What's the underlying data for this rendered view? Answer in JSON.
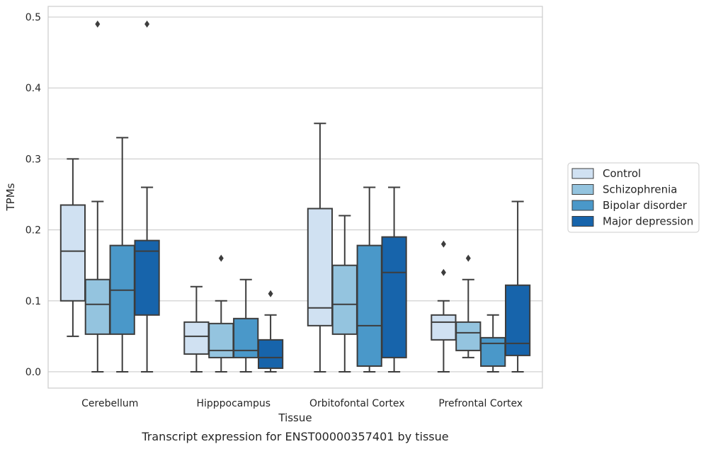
{
  "chart_data": {
    "type": "box",
    "xlabel": "Tissue",
    "ylabel": "TPMs",
    "caption": "Transcript expression for ENST00000357401 by tissue",
    "ylim": [
      -0.023,
      0.515
    ],
    "yticks": [
      "0.0",
      "0.1",
      "0.2",
      "0.3",
      "0.4",
      "0.5"
    ],
    "ytick_values": [
      0.0,
      0.1,
      0.2,
      0.3,
      0.4,
      0.5
    ],
    "grid": true,
    "legend_position": "right",
    "categories": [
      "Cerebellum",
      "Hipppocampus",
      "Orbitofontal Cortex",
      "Prefrontal Cortex"
    ],
    "series": [
      {
        "name": "Control",
        "color": "#d0e1f2",
        "boxes": [
          {
            "whislo": 0.05,
            "q1": 0.1,
            "med": 0.17,
            "q3": 0.235,
            "whishi": 0.3,
            "fliers": []
          },
          {
            "whislo": 0.0,
            "q1": 0.025,
            "med": 0.05,
            "q3": 0.07,
            "whishi": 0.12,
            "fliers": []
          },
          {
            "whislo": 0.0,
            "q1": 0.065,
            "med": 0.09,
            "q3": 0.23,
            "whishi": 0.35,
            "fliers": []
          },
          {
            "whislo": 0.0,
            "q1": 0.045,
            "med": 0.07,
            "q3": 0.08,
            "whishi": 0.1,
            "fliers": [
              0.14,
              0.18
            ]
          }
        ]
      },
      {
        "name": "Schizophrenia",
        "color": "#94c4df",
        "boxes": [
          {
            "whislo": 0.0,
            "q1": 0.053,
            "med": 0.095,
            "q3": 0.13,
            "whishi": 0.24,
            "fliers": [
              0.49
            ]
          },
          {
            "whislo": 0.0,
            "q1": 0.02,
            "med": 0.03,
            "q3": 0.068,
            "whishi": 0.1,
            "fliers": [
              0.16
            ]
          },
          {
            "whislo": 0.0,
            "q1": 0.053,
            "med": 0.095,
            "q3": 0.15,
            "whishi": 0.22,
            "fliers": []
          },
          {
            "whislo": 0.02,
            "q1": 0.03,
            "med": 0.055,
            "q3": 0.07,
            "whishi": 0.13,
            "fliers": [
              0.16
            ]
          }
        ]
      },
      {
        "name": "Bipolar disorder",
        "color": "#4a98c9",
        "boxes": [
          {
            "whislo": 0.0,
            "q1": 0.053,
            "med": 0.115,
            "q3": 0.178,
            "whishi": 0.33,
            "fliers": []
          },
          {
            "whislo": 0.0,
            "q1": 0.02,
            "med": 0.03,
            "q3": 0.075,
            "whishi": 0.13,
            "fliers": []
          },
          {
            "whislo": 0.0,
            "q1": 0.008,
            "med": 0.065,
            "q3": 0.178,
            "whishi": 0.26,
            "fliers": []
          },
          {
            "whislo": 0.0,
            "q1": 0.008,
            "med": 0.04,
            "q3": 0.048,
            "whishi": 0.08,
            "fliers": []
          }
        ]
      },
      {
        "name": "Major depression",
        "color": "#1764ab",
        "boxes": [
          {
            "whislo": 0.0,
            "q1": 0.08,
            "med": 0.17,
            "q3": 0.185,
            "whishi": 0.26,
            "fliers": [
              0.49
            ]
          },
          {
            "whislo": 0.0,
            "q1": 0.005,
            "med": 0.02,
            "q3": 0.045,
            "whishi": 0.08,
            "fliers": [
              0.11
            ]
          },
          {
            "whislo": 0.0,
            "q1": 0.02,
            "med": 0.14,
            "q3": 0.19,
            "whishi": 0.26,
            "fliers": []
          },
          {
            "whislo": 0.0,
            "q1": 0.023,
            "med": 0.04,
            "q3": 0.122,
            "whishi": 0.24,
            "fliers": []
          }
        ]
      }
    ]
  }
}
